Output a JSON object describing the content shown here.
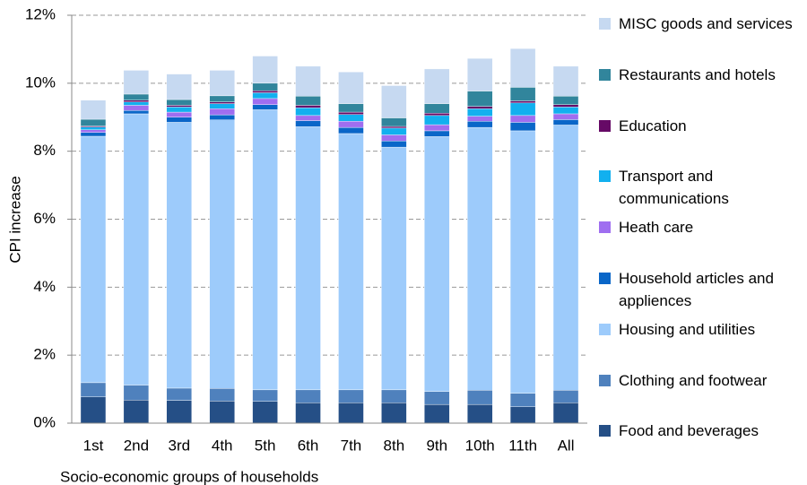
{
  "chart_data": {
    "type": "stacked_bar",
    "x_label": "Socio-economic groups of households",
    "y_label": "CPI increase",
    "categories": [
      "1st",
      "2nd",
      "3rd",
      "4th",
      "5th",
      "6th",
      "7th",
      "8th",
      "9th",
      "10th",
      "11th",
      "All"
    ],
    "series": [
      {
        "name": "Food and beverages",
        "color": "#254f86",
        "values": [
          0.77,
          0.68,
          0.67,
          0.65,
          0.64,
          0.6,
          0.6,
          0.6,
          0.55,
          0.55,
          0.48,
          0.6
        ]
      },
      {
        "name": "Clothing and footwear",
        "color": "#4f81bd",
        "values": [
          0.42,
          0.44,
          0.36,
          0.37,
          0.34,
          0.38,
          0.38,
          0.38,
          0.38,
          0.42,
          0.4,
          0.37
        ]
      },
      {
        "name": "Housing and utilities",
        "color": "#9dcbfb",
        "values": [
          7.25,
          7.98,
          7.82,
          7.9,
          8.24,
          7.74,
          7.54,
          7.14,
          7.5,
          7.73,
          7.72,
          7.8
        ]
      },
      {
        "name": "Household articles and appliences",
        "color": "#0a66c8",
        "values": [
          0.11,
          0.1,
          0.15,
          0.15,
          0.15,
          0.18,
          0.18,
          0.18,
          0.17,
          0.18,
          0.25,
          0.16
        ]
      },
      {
        "name": "Heath care",
        "color": "#9f6ef0",
        "values": [
          0.08,
          0.15,
          0.15,
          0.18,
          0.18,
          0.15,
          0.18,
          0.18,
          0.18,
          0.15,
          0.2,
          0.17
        ]
      },
      {
        "name": "Transport and communications",
        "color": "#12b0ef",
        "values": [
          0.08,
          0.1,
          0.15,
          0.15,
          0.17,
          0.23,
          0.2,
          0.2,
          0.27,
          0.22,
          0.37,
          0.2
        ]
      },
      {
        "name": "Education",
        "color": "#660a66",
        "values": [
          0.03,
          0.05,
          0.05,
          0.05,
          0.06,
          0.07,
          0.07,
          0.05,
          0.07,
          0.07,
          0.06,
          0.07
        ]
      },
      {
        "name": "Restaurants and hotels",
        "color": "#31859c",
        "values": [
          0.2,
          0.18,
          0.17,
          0.18,
          0.22,
          0.27,
          0.25,
          0.25,
          0.28,
          0.45,
          0.4,
          0.25
        ]
      },
      {
        "name": "MISC goods and services",
        "color": "#c6d9f1",
        "values": [
          0.56,
          0.7,
          0.75,
          0.75,
          0.8,
          0.88,
          0.93,
          0.95,
          1.02,
          0.96,
          1.14,
          0.88
        ]
      }
    ],
    "ylim": [
      0,
      12
    ],
    "yticks": [
      {
        "value": 0,
        "label": "0%"
      },
      {
        "value": 2,
        "label": "2%"
      },
      {
        "value": 4,
        "label": "4%"
      },
      {
        "value": 6,
        "label": "6%"
      },
      {
        "value": 8,
        "label": "8%"
      },
      {
        "value": 10,
        "label": "10%"
      },
      {
        "value": 12,
        "label": "12%"
      }
    ],
    "grid": true,
    "legend": "right"
  }
}
